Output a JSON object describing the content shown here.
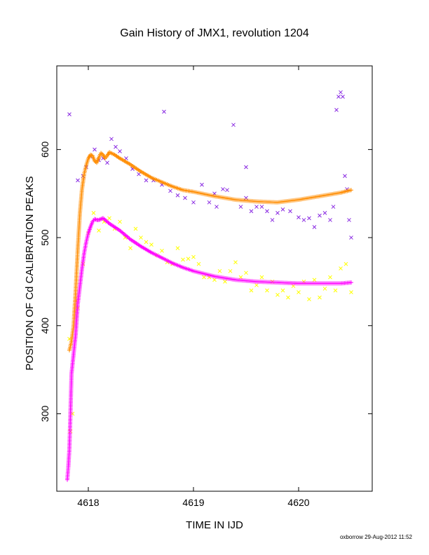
{
  "chart_data": {
    "type": "scatter",
    "title": "Gain History of JMX1, revolution 1204",
    "xlabel": "TIME IN IJD",
    "ylabel": "POSITION OF Cd CALIBRATION PEAKS",
    "xlim": [
      4617.7,
      4620.7
    ],
    "ylim": [
      212,
      695
    ],
    "xticks": [
      4618,
      4619,
      4620
    ],
    "yticks": [
      300,
      400,
      500,
      600
    ],
    "grid": false,
    "legend": "none",
    "footer": "oxborrow 29-Aug-2012 11:52",
    "colors": {
      "orange": "#ff8c00",
      "magenta": "#ff00ff",
      "purple": "#8a2be2",
      "yellow": "#ffff00"
    },
    "series": [
      {
        "color": "#ff8c00",
        "marker": "plus-line",
        "x": [
          4617.82,
          4617.84,
          4617.86,
          4617.88,
          4617.9,
          4617.92,
          4617.94,
          4617.96,
          4617.98,
          4618.0,
          4618.02,
          4618.04,
          4618.06,
          4618.08,
          4618.1,
          4618.12,
          4618.14,
          4618.16,
          4618.18,
          4618.2,
          4618.25,
          4618.3,
          4618.4,
          4618.5,
          4618.6,
          4618.7,
          4618.8,
          4618.9,
          4619.0,
          4619.2,
          4619.4,
          4619.6,
          4619.8,
          4620.0,
          4620.2,
          4620.4,
          4620.5
        ],
        "y": [
          372,
          382,
          400,
          440,
          488,
          528,
          555,
          572,
          582,
          590,
          594,
          593,
          587,
          585,
          591,
          596,
          594,
          590,
          593,
          597,
          594,
          590,
          583,
          575,
          568,
          563,
          558,
          554,
          552,
          547,
          543,
          541,
          540,
          543,
          547,
          551,
          554
        ]
      },
      {
        "color": "#ff00ff",
        "marker": "plus-line",
        "x": [
          4617.8,
          4617.81,
          4617.82,
          4617.83,
          4617.84,
          4617.86,
          4617.88,
          4617.9,
          4617.92,
          4617.94,
          4617.96,
          4617.98,
          4618.0,
          4618.02,
          4618.04,
          4618.06,
          4618.08,
          4618.1,
          4618.12,
          4618.14,
          4618.2,
          4618.3,
          4618.4,
          4618.5,
          4618.6,
          4618.7,
          4618.8,
          4618.9,
          4619.0,
          4619.2,
          4619.4,
          4619.6,
          4619.8,
          4620.0,
          4620.2,
          4620.4,
          4620.5
        ],
        "y": [
          225,
          240,
          260,
          300,
          345,
          368,
          390,
          425,
          445,
          465,
          482,
          495,
          505,
          512,
          518,
          521,
          520,
          520,
          521,
          522,
          516,
          508,
          498,
          490,
          483,
          477,
          471,
          466,
          462,
          456,
          452,
          450,
          449,
          448,
          448,
          448,
          449
        ]
      },
      {
        "color": "#8a2be2",
        "marker": "x",
        "x": [
          4617.82,
          4617.9,
          4617.95,
          4617.98,
          4618.02,
          4618.06,
          4618.1,
          4618.14,
          4618.18,
          4618.22,
          4618.26,
          4618.3,
          4618.36,
          4618.42,
          4618.48,
          4618.55,
          4618.62,
          4618.7,
          4618.78,
          4618.85,
          4618.92,
          4619.0,
          4619.08,
          4619.15,
          4619.2,
          4619.28,
          4619.32,
          4619.38,
          4619.45,
          4619.5,
          4619.55,
          4619.6,
          4619.65,
          4619.7,
          4619.75,
          4619.8,
          4619.85,
          4619.92,
          4620.0,
          4620.05,
          4620.1,
          4620.15,
          4620.2,
          4620.25,
          4620.3,
          4620.33,
          4620.36,
          4620.38,
          4620.4,
          4620.42,
          4620.44,
          4620.46,
          4620.48,
          4620.5,
          4618.72,
          4619.22,
          4619.5
        ],
        "y": [
          640,
          565,
          570,
          580,
          592,
          600,
          588,
          590,
          585,
          612,
          603,
          598,
          590,
          578,
          572,
          565,
          565,
          560,
          553,
          548,
          545,
          540,
          560,
          540,
          550,
          555,
          554,
          628,
          535,
          545,
          530,
          535,
          535,
          530,
          520,
          528,
          532,
          530,
          523,
          520,
          522,
          512,
          525,
          528,
          520,
          535,
          645,
          660,
          665,
          660,
          570,
          555,
          520,
          500,
          643,
          535,
          580
        ]
      },
      {
        "color": "#ffff00",
        "marker": "x",
        "x": [
          4617.82,
          4617.9,
          4617.95,
          4618.0,
          4618.05,
          4618.1,
          4618.15,
          4618.2,
          4618.25,
          4618.3,
          4618.35,
          4618.4,
          4618.45,
          4618.5,
          4618.55,
          4618.6,
          4618.65,
          4618.7,
          4618.75,
          4618.8,
          4618.85,
          4618.9,
          4618.95,
          4619.0,
          4619.05,
          4619.1,
          4619.15,
          4619.2,
          4619.25,
          4619.3,
          4619.35,
          4619.4,
          4619.45,
          4619.5,
          4619.55,
          4619.6,
          4619.65,
          4619.7,
          4619.75,
          4619.8,
          4619.85,
          4619.9,
          4619.95,
          4620.0,
          4620.05,
          4620.1,
          4620.15,
          4620.2,
          4620.25,
          4620.3,
          4620.35,
          4620.4,
          4620.45,
          4620.5,
          4617.83,
          4617.85
        ],
        "y": [
          385,
          420,
          470,
          505,
          528,
          508,
          518,
          522,
          510,
          518,
          500,
          488,
          510,
          500,
          495,
          492,
          480,
          485,
          472,
          470,
          488,
          475,
          476,
          478,
          470,
          455,
          455,
          452,
          462,
          450,
          462,
          472,
          455,
          460,
          440,
          446,
          455,
          440,
          450,
          435,
          440,
          432,
          445,
          438,
          450,
          430,
          452,
          432,
          442,
          455,
          440,
          465,
          470,
          438,
          280,
          300
        ]
      }
    ]
  }
}
